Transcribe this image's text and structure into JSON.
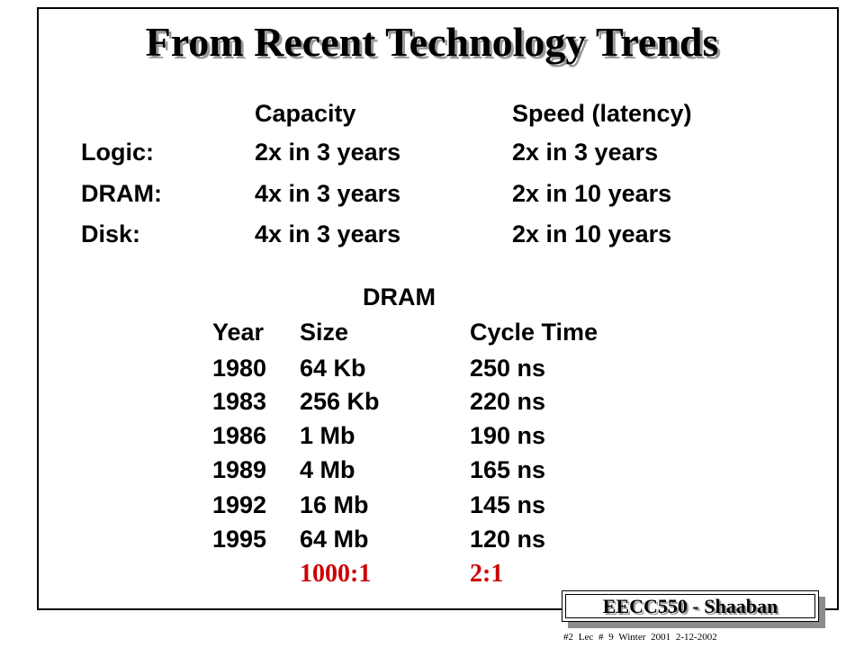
{
  "title": "From Recent Technology Trends",
  "trends": {
    "headers": {
      "capacity": "Capacity",
      "speed": "Speed (latency)"
    },
    "rows": [
      {
        "label": "Logic:",
        "capacity": "2x in 3 years",
        "speed": "2x in 3 years"
      },
      {
        "label": "DRAM:",
        "capacity": "4x in 3 years",
        "speed": "2x in 10 years"
      },
      {
        "label": "Disk:",
        "capacity": "4x in 3 years",
        "speed": "2x in 10 years"
      }
    ]
  },
  "dram": {
    "title": "DRAM",
    "headers": {
      "year": "Year",
      "size": "Size",
      "cycle": "Cycle Time"
    },
    "rows": [
      {
        "year": "1980",
        "size": "64 Kb",
        "cycle": "250 ns"
      },
      {
        "year": "1983",
        "size": "256 Kb",
        "cycle": "220 ns"
      },
      {
        "year": "1986",
        "size": "1 Mb",
        "cycle": "190 ns"
      },
      {
        "year": "1989",
        "size": "4 Mb",
        "cycle": "165 ns"
      },
      {
        "year": "1992",
        "size": "16 Mb",
        "cycle": "145 ns"
      },
      {
        "year": "1995",
        "size": "64 Mb",
        "cycle": "120 ns"
      }
    ],
    "ratios": {
      "size": "1000:1",
      "cycle": "2:1"
    }
  },
  "badge": "EECC550 - Shaaban",
  "footer": "#2  Lec # 9   Winter 2001   2-12-2002",
  "colors": {
    "ratio": "#cc0000",
    "shadow": "#9a9a9a"
  }
}
